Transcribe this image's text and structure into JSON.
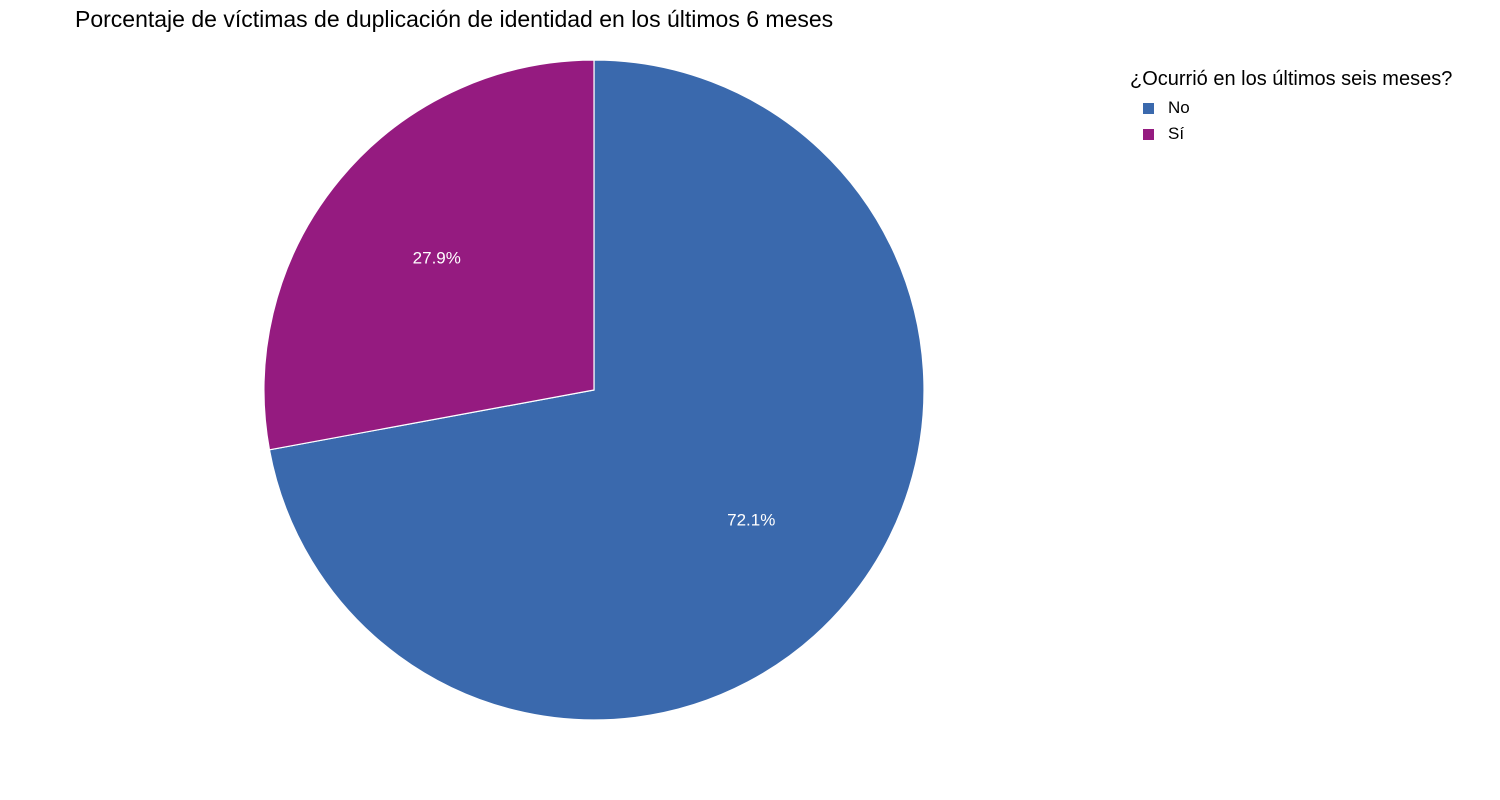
{
  "chart_data": {
    "type": "pie",
    "title": "Porcentaje de víctimas de duplicación de identidad en los últimos 6 meses",
    "legend_title": "¿Ocurrió en los últimos seis meses?",
    "legend_placement": "top-right",
    "slices": [
      {
        "label": "No",
        "value": 72.1,
        "display": "72.1%",
        "color": "#3a69ad"
      },
      {
        "label": "Sí",
        "value": 27.9,
        "display": "27.9%",
        "color": "#951b80"
      }
    ]
  }
}
